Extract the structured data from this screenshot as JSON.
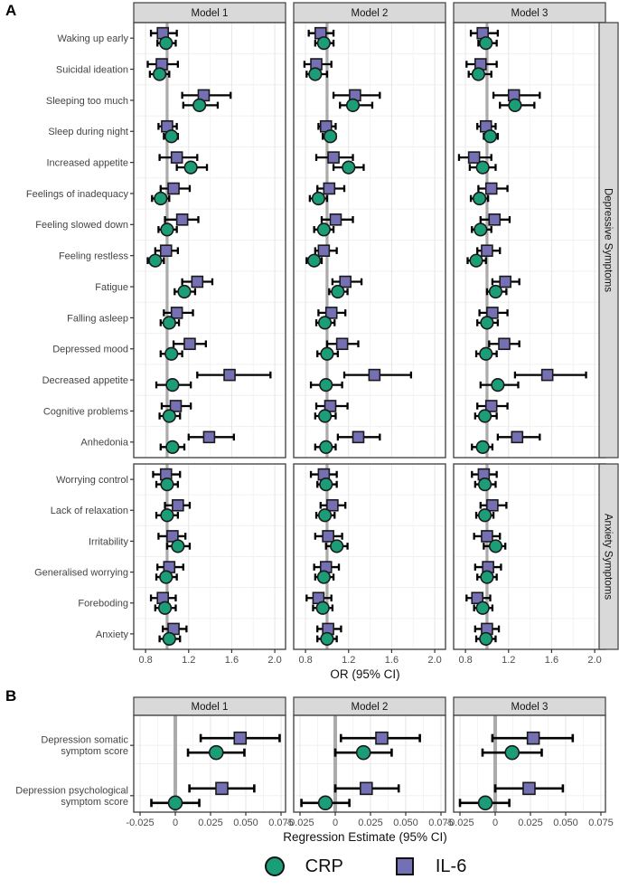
{
  "panels": {
    "a": {
      "label": "A",
      "xlabel": "OR (95% CI)"
    },
    "b": {
      "label": "B",
      "xlabel": "Regression Estimate (95% CI)"
    }
  },
  "legend": {
    "position": "bottom",
    "items": [
      {
        "label": "CRP",
        "marker": "circle"
      },
      {
        "label": "IL-6",
        "marker": "square"
      }
    ]
  },
  "colors": {
    "crp": "#1b9e77",
    "il6": "#7570b3",
    "strip_bg": "#d9d9d9",
    "panel_border": "#4a4a4a",
    "ref_line": "#ababab",
    "error_bar": "#000000"
  },
  "chart_data": [
    {
      "id": "A",
      "type": "forest",
      "title": "",
      "xlabel": "OR (95% CI)",
      "x_ticks": [
        "0.8",
        "1.2",
        "1.6",
        "2.0"
      ],
      "x_tick_values": [
        0.8,
        1.2,
        1.6,
        2.0
      ],
      "x_minor_values": [
        1.0,
        1.4,
        1.8
      ],
      "xlim": [
        0.69,
        2.1
      ],
      "ref_value": 1.0,
      "grid": true,
      "facet_cols": [
        "Model 1",
        "Model 2",
        "Model 3"
      ],
      "series_legend": [
        "CRP",
        "IL-6"
      ],
      "facet_rows": [
        {
          "label": "Depressive Symptoms",
          "rows": [
            {
              "label": "Waking up early",
              "il6": [
                [
                  0.96,
                  0.85,
                  1.09
                ],
                [
                  0.94,
                  0.83,
                  1.06
                ],
                [
                  0.96,
                  0.85,
                  1.1
                ]
              ],
              "crp": [
                [
                  0.99,
                  0.91,
                  1.08
                ],
                [
                  0.97,
                  0.89,
                  1.06
                ],
                [
                  0.99,
                  0.92,
                  1.09
                ]
              ]
            },
            {
              "label": "Suicidal ideation",
              "il6": [
                [
                  0.95,
                  0.82,
                  1.1
                ],
                [
                  0.9,
                  0.79,
                  1.04
                ],
                [
                  0.94,
                  0.81,
                  1.09
                ]
              ],
              "crp": [
                [
                  0.93,
                  0.84,
                  1.02
                ],
                [
                  0.89,
                  0.81,
                  1.0
                ],
                [
                  0.92,
                  0.83,
                  1.04
                ]
              ]
            },
            {
              "label": "Sleeping too much",
              "il6": [
                [
                  1.34,
                  1.14,
                  1.59
                ],
                [
                  1.26,
                  1.06,
                  1.49
                ],
                [
                  1.25,
                  1.06,
                  1.49
                ]
              ],
              "crp": [
                [
                  1.3,
                  1.15,
                  1.47
                ],
                [
                  1.24,
                  1.12,
                  1.42
                ],
                [
                  1.26,
                  1.12,
                  1.44
                ]
              ]
            },
            {
              "label": "Sleep during night",
              "il6": [
                [
                  1.0,
                  0.92,
                  1.09
                ],
                [
                  0.99,
                  0.92,
                  1.08
                ],
                [
                  0.99,
                  0.91,
                  1.08
                ]
              ],
              "crp": [
                [
                  1.04,
                  0.97,
                  1.1
                ],
                [
                  1.03,
                  0.96,
                  1.08
                ],
                [
                  1.03,
                  0.97,
                  1.1
                ]
              ]
            },
            {
              "label": "Increased appetite",
              "il6": [
                [
                  1.09,
                  0.93,
                  1.28
                ],
                [
                  1.06,
                  0.9,
                  1.24
                ],
                [
                  0.88,
                  0.74,
                  1.04
                ]
              ],
              "crp": [
                [
                  1.22,
                  1.09,
                  1.37
                ],
                [
                  1.2,
                  1.06,
                  1.34
                ],
                [
                  0.96,
                  0.84,
                  1.08
                ]
              ]
            },
            {
              "label": "Feelings of inadequacy",
              "il6": [
                [
                  1.06,
                  0.94,
                  1.21
                ],
                [
                  1.02,
                  0.91,
                  1.16
                ],
                [
                  1.04,
                  0.92,
                  1.19
                ]
              ],
              "crp": [
                [
                  0.94,
                  0.86,
                  1.02
                ],
                [
                  0.92,
                  0.84,
                  1.0
                ],
                [
                  0.93,
                  0.85,
                  1.01
                ]
              ]
            },
            {
              "label": "Feeling slowed down",
              "il6": [
                [
                  1.14,
                  0.98,
                  1.29
                ],
                [
                  1.08,
                  0.95,
                  1.24
                ],
                [
                  1.07,
                  0.94,
                  1.21
                ]
              ],
              "crp": [
                [
                  1.0,
                  0.92,
                  1.09
                ],
                [
                  0.97,
                  0.88,
                  1.06
                ],
                [
                  0.94,
                  0.86,
                  1.04
                ]
              ]
            },
            {
              "label": "Feeling restless",
              "il6": [
                [
                  0.99,
                  0.89,
                  1.1
                ],
                [
                  0.97,
                  0.89,
                  1.09
                ],
                [
                  1.0,
                  0.91,
                  1.12
                ]
              ],
              "crp": [
                [
                  0.89,
                  0.82,
                  0.97
                ],
                [
                  0.88,
                  0.81,
                  0.95
                ],
                [
                  0.9,
                  0.82,
                  0.99
                ]
              ]
            },
            {
              "label": "Fatigue",
              "il6": [
                [
                  1.28,
                  1.14,
                  1.42
                ],
                [
                  1.17,
                  1.05,
                  1.32
                ],
                [
                  1.17,
                  1.05,
                  1.3
                ]
              ],
              "crp": [
                [
                  1.16,
                  1.07,
                  1.26
                ],
                [
                  1.1,
                  1.02,
                  1.19
                ],
                [
                  1.08,
                  1.0,
                  1.18
                ]
              ]
            },
            {
              "label": "Falling asleep",
              "il6": [
                [
                  1.09,
                  0.97,
                  1.24
                ],
                [
                  1.04,
                  0.92,
                  1.17
                ],
                [
                  1.05,
                  0.93,
                  1.19
                ]
              ],
              "crp": [
                [
                  1.02,
                  0.94,
                  1.11
                ],
                [
                  0.98,
                  0.9,
                  1.07
                ],
                [
                  1.0,
                  0.91,
                  1.1
                ]
              ]
            },
            {
              "label": "Depressed mood",
              "il6": [
                [
                  1.21,
                  1.06,
                  1.36
                ],
                [
                  1.14,
                  1.0,
                  1.29
                ],
                [
                  1.16,
                  1.02,
                  1.3
                ]
              ],
              "crp": [
                [
                  1.04,
                  0.94,
                  1.14
                ],
                [
                  1.0,
                  0.91,
                  1.1
                ],
                [
                  0.99,
                  0.9,
                  1.09
                ]
              ]
            },
            {
              "label": "Decreased appetite",
              "il6": [
                [
                  1.58,
                  1.28,
                  1.96
                ],
                [
                  1.44,
                  1.16,
                  1.78
                ],
                [
                  1.56,
                  1.26,
                  1.92
                ]
              ],
              "crp": [
                [
                  1.05,
                  0.9,
                  1.22
                ],
                [
                  0.99,
                  0.85,
                  1.14
                ],
                [
                  1.1,
                  0.94,
                  1.29
                ]
              ]
            },
            {
              "label": "Cognitive problems",
              "il6": [
                [
                  1.08,
                  0.95,
                  1.22
                ],
                [
                  1.03,
                  0.9,
                  1.19
                ],
                [
                  1.04,
                  0.91,
                  1.19
                ]
              ],
              "crp": [
                [
                  1.02,
                  0.93,
                  1.12
                ],
                [
                  0.98,
                  0.89,
                  1.08
                ],
                [
                  0.98,
                  0.89,
                  1.09
                ]
              ]
            },
            {
              "label": "Anhedonia",
              "il6": [
                [
                  1.39,
                  1.2,
                  1.62
                ],
                [
                  1.29,
                  1.1,
                  1.49
                ],
                [
                  1.28,
                  1.1,
                  1.49
                ]
              ],
              "crp": [
                [
                  1.05,
                  0.94,
                  1.16
                ],
                [
                  0.99,
                  0.89,
                  1.08
                ],
                [
                  0.96,
                  0.86,
                  1.05
                ]
              ]
            }
          ]
        },
        {
          "label": "Anxiety Symptoms",
          "rows": [
            {
              "label": "Worrying control",
              "il6": [
                [
                  0.99,
                  0.87,
                  1.12
                ],
                [
                  0.97,
                  0.85,
                  1.09
                ],
                [
                  0.97,
                  0.86,
                  1.09
                ]
              ],
              "crp": [
                [
                  1.0,
                  0.9,
                  1.1
                ],
                [
                  0.99,
                  0.91,
                  1.09
                ],
                [
                  0.98,
                  0.89,
                  1.08
                ]
              ]
            },
            {
              "label": "Lack of relaxation",
              "il6": [
                [
                  1.1,
                  0.98,
                  1.21
                ],
                [
                  1.05,
                  0.94,
                  1.17
                ],
                [
                  1.05,
                  0.94,
                  1.18
                ]
              ],
              "crp": [
                [
                  1.0,
                  0.9,
                  1.1
                ],
                [
                  0.98,
                  0.9,
                  1.07
                ],
                [
                  0.98,
                  0.9,
                  1.06
                ]
              ]
            },
            {
              "label": "Irritability",
              "il6": [
                [
                  1.05,
                  0.92,
                  1.17
                ],
                [
                  1.01,
                  0.89,
                  1.14
                ],
                [
                  1.0,
                  0.88,
                  1.12
                ]
              ],
              "crp": [
                [
                  1.1,
                  1.0,
                  1.21
                ],
                [
                  1.09,
                  0.99,
                  1.19
                ],
                [
                  1.08,
                  0.97,
                  1.17
                ]
              ]
            },
            {
              "label": "Generalised worrying",
              "il6": [
                [
                  1.02,
                  0.91,
                  1.15
                ],
                [
                  0.99,
                  0.88,
                  1.11
                ],
                [
                  1.01,
                  0.89,
                  1.13
                ]
              ],
              "crp": [
                [
                  0.99,
                  0.9,
                  1.09
                ],
                [
                  0.97,
                  0.89,
                  1.06
                ],
                [
                  1.0,
                  0.91,
                  1.09
                ]
              ]
            },
            {
              "label": "Foreboding",
              "il6": [
                [
                  0.96,
                  0.85,
                  1.08
                ],
                [
                  0.92,
                  0.81,
                  1.04
                ],
                [
                  0.91,
                  0.81,
                  1.03
                ]
              ],
              "crp": [
                [
                  0.98,
                  0.89,
                  1.08
                ],
                [
                  0.96,
                  0.87,
                  1.05
                ],
                [
                  0.96,
                  0.88,
                  1.05
                ]
              ]
            },
            {
              "label": "Anxiety",
              "il6": [
                [
                  1.06,
                  0.96,
                  1.18
                ],
                [
                  1.01,
                  0.91,
                  1.13
                ],
                [
                  1.0,
                  0.89,
                  1.11
                ]
              ],
              "crp": [
                [
                  1.02,
                  0.93,
                  1.12
                ],
                [
                  1.0,
                  0.91,
                  1.09
                ],
                [
                  0.99,
                  0.9,
                  1.08
                ]
              ]
            }
          ]
        }
      ]
    },
    {
      "id": "B",
      "type": "forest",
      "title": "",
      "xlabel": "Regression Estimate (95% CI)",
      "x_ticks": [
        "-0.025",
        "0",
        "0.025",
        "0.050",
        "0.075"
      ],
      "x_tick_values": [
        -0.025,
        0,
        0.025,
        0.05,
        0.075
      ],
      "x_minor_values": [
        -0.0125,
        0.0125,
        0.0375,
        0.0625
      ],
      "xlim": [
        -0.0295,
        0.0782
      ],
      "ref_value": 0,
      "grid": true,
      "facet_cols": [
        "Model 1",
        "Model 2",
        "Model 3"
      ],
      "series_legend": [
        "CRP",
        "IL-6"
      ],
      "facet_rows": [
        {
          "label": "",
          "rows": [
            {
              "label": "Depression somatic\nsymptom score",
              "il6": [
                [
                  0.046,
                  0.018,
                  0.074
                ],
                [
                  0.033,
                  0.004,
                  0.06
                ],
                [
                  0.027,
                  -0.002,
                  0.055
                ]
              ],
              "crp": [
                [
                  0.029,
                  0.009,
                  0.049
                ],
                [
                  0.02,
                  0.0,
                  0.04
                ],
                [
                  0.012,
                  -0.009,
                  0.033
                ]
              ]
            },
            {
              "label": "Depression psychological\nsymptom score",
              "il6": [
                [
                  0.033,
                  0.01,
                  0.056
                ],
                [
                  0.022,
                  0.0,
                  0.045
                ],
                [
                  0.024,
                  0.0,
                  0.048
                ]
              ],
              "crp": [
                [
                  0.0,
                  -0.017,
                  0.017
                ],
                [
                  -0.007,
                  -0.024,
                  0.01
                ],
                [
                  -0.007,
                  -0.025,
                  0.01
                ]
              ]
            }
          ]
        }
      ]
    }
  ]
}
